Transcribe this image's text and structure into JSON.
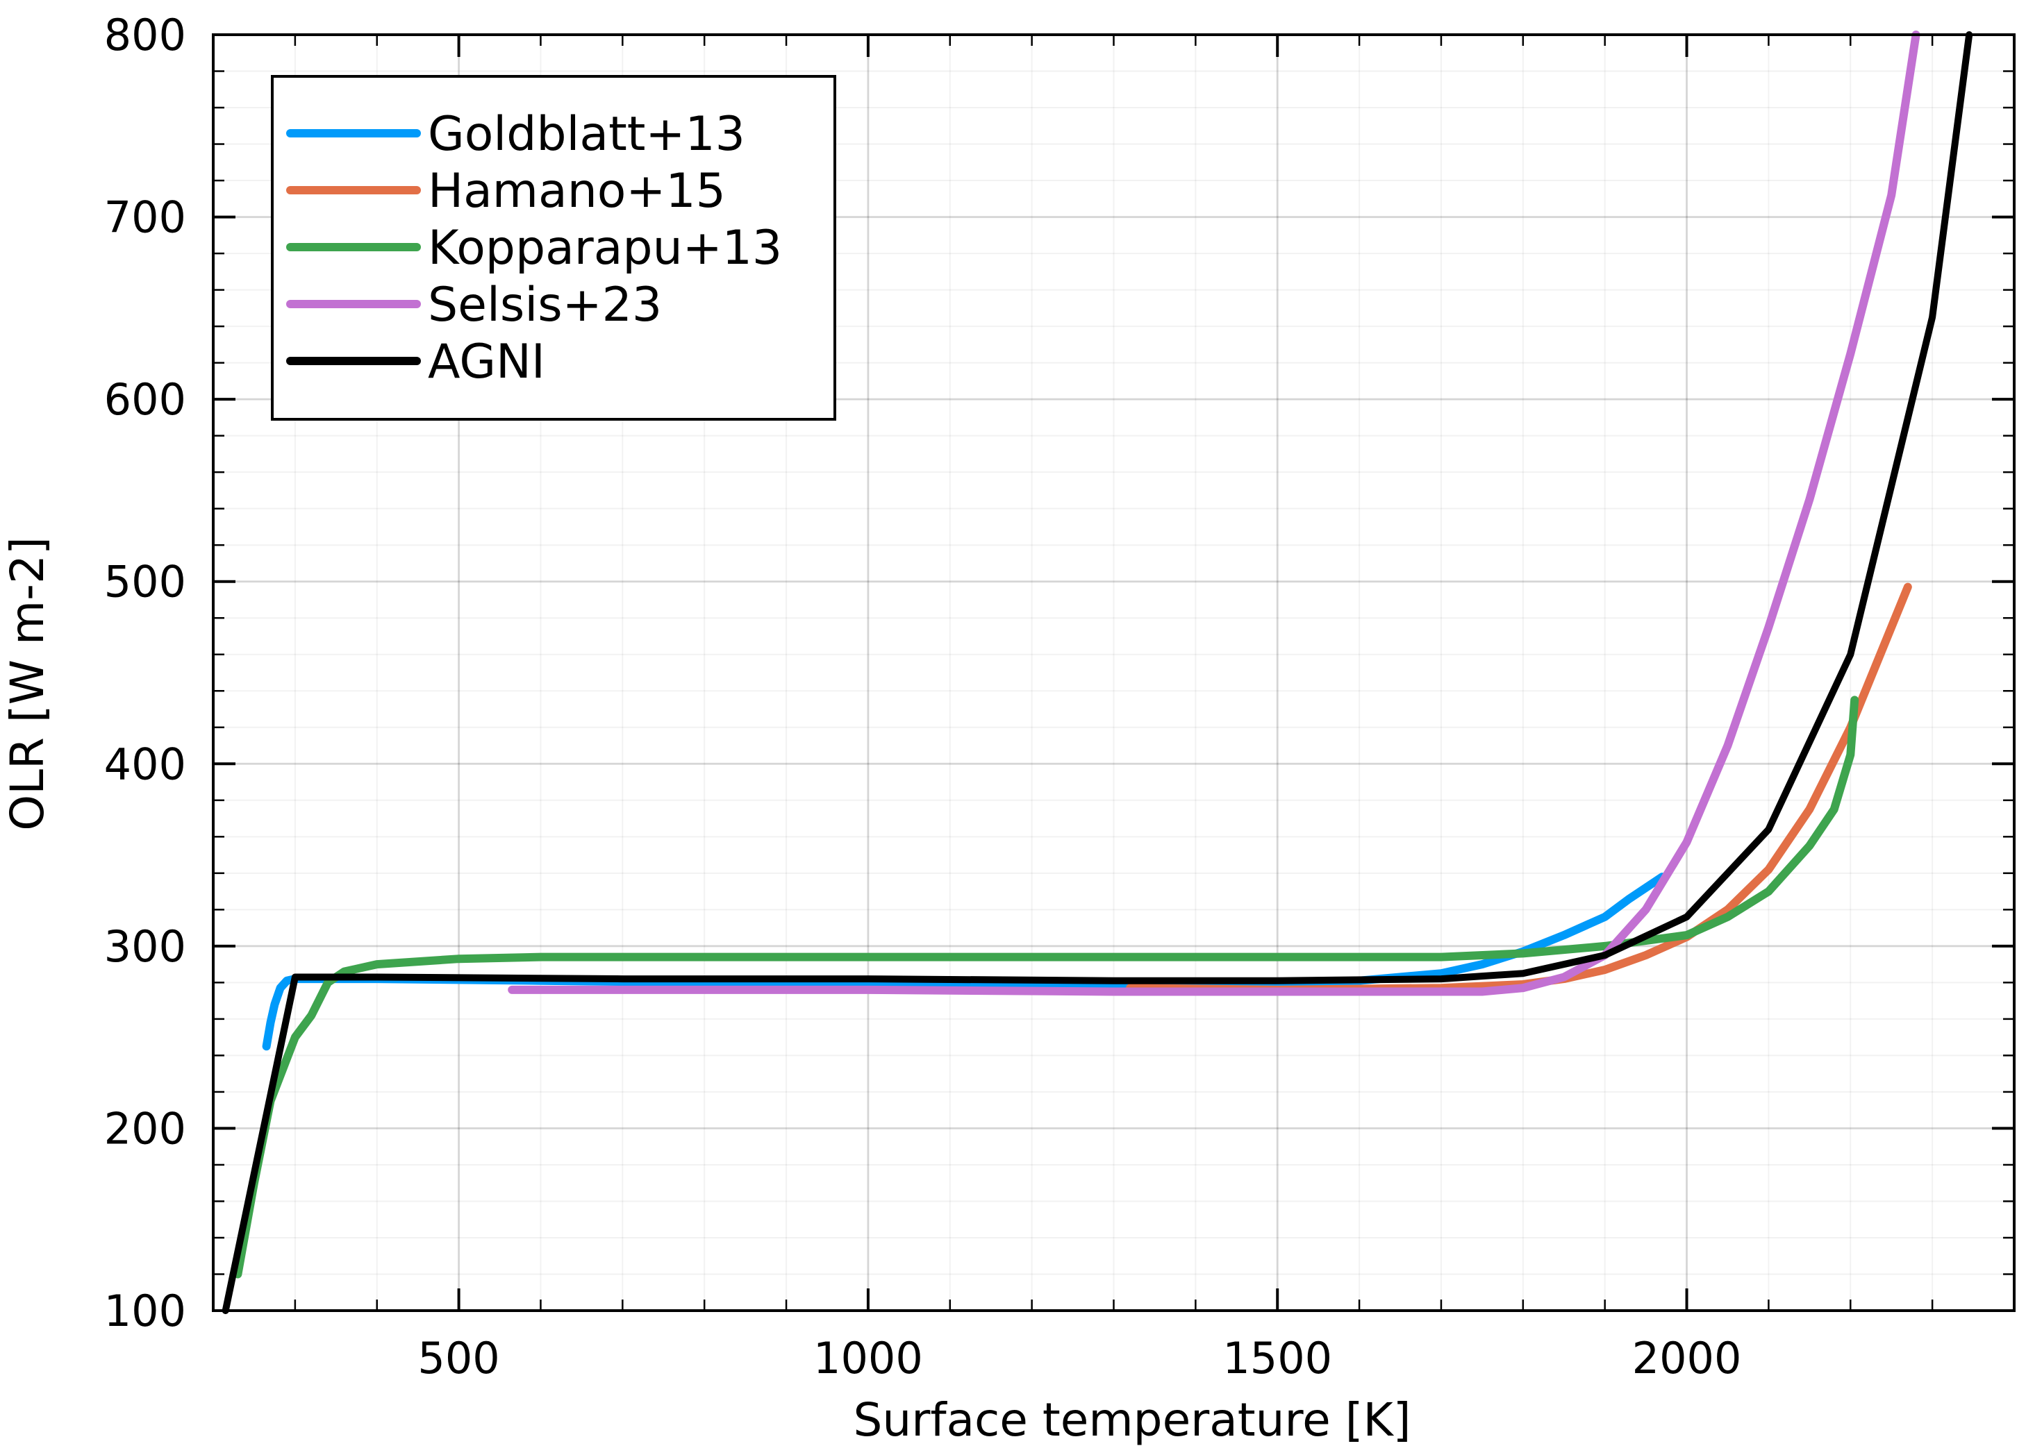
{
  "chart_data": {
    "type": "line",
    "title": "",
    "xlabel": "Surface temperature [K]",
    "ylabel": "OLR [W m-2]",
    "xlim": [
      200,
      2400
    ],
    "ylim": [
      100,
      800
    ],
    "xticks": [
      500,
      1000,
      1500,
      2000
    ],
    "yticks": [
      100,
      200,
      300,
      400,
      500,
      600,
      700,
      800
    ],
    "grid": true,
    "legend_position": "top-left",
    "series": [
      {
        "name": "Goldblatt+13",
        "color": "#009AFA",
        "x": [
          265,
          270,
          275,
          282,
          290,
          300,
          320,
          400,
          600,
          1000,
          1400,
          1600,
          1700,
          1750,
          1800,
          1850,
          1900,
          1930,
          1970
        ],
        "y": [
          245,
          258,
          268,
          277,
          281,
          282,
          282,
          282,
          281,
          279,
          279,
          281,
          285,
          290,
          297,
          306,
          316,
          326,
          338
        ]
      },
      {
        "name": "Hamano+15",
        "color": "#E26F46",
        "x": [
          1320,
          1500,
          1700,
          1800,
          1850,
          1900,
          1950,
          2000,
          2050,
          2100,
          2150,
          2200,
          2270
        ],
        "y": [
          277,
          276,
          277,
          279,
          282,
          287,
          295,
          305,
          320,
          342,
          375,
          420,
          497
        ]
      },
      {
        "name": "Kopparapu+13",
        "color": "#3EA44E",
        "x": [
          230,
          250,
          270,
          300,
          320,
          340,
          360,
          400,
          500,
          600,
          1000,
          1500,
          1700,
          1800,
          1900,
          2000,
          2050,
          2100,
          2150,
          2180,
          2200,
          2205
        ],
        "y": [
          120,
          170,
          215,
          250,
          262,
          280,
          286,
          290,
          293,
          294,
          294,
          294,
          294,
          296,
          300,
          306,
          316,
          330,
          355,
          375,
          405,
          435
        ]
      },
      {
        "name": "Selsis+23",
        "color": "#C271D2",
        "x": [
          565,
          700,
          1000,
          1300,
          1600,
          1750,
          1800,
          1850,
          1900,
          1950,
          2000,
          2050,
          2100,
          2150,
          2200,
          2250,
          2280
        ],
        "y": [
          276,
          276,
          276,
          275,
          275,
          275,
          277,
          283,
          295,
          320,
          357,
          410,
          475,
          545,
          625,
          712,
          800
        ]
      },
      {
        "name": "AGNI",
        "color": "#000000",
        "x": [
          215,
          300,
          400,
          700,
          1000,
          1300,
          1500,
          1700,
          1800,
          1900,
          2000,
          2100,
          2200,
          2300,
          2345
        ],
        "y": [
          100,
          283,
          283,
          282,
          282,
          281,
          281,
          282,
          285,
          295,
          316,
          364,
          460,
          645,
          800
        ]
      }
    ]
  }
}
